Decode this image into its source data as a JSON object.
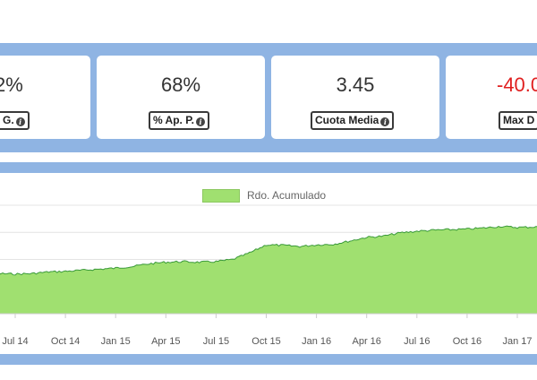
{
  "stats": [
    {
      "value": "2%",
      "label": "p. G.",
      "negative": false
    },
    {
      "value": "68%",
      "label": "% Ap. P.",
      "negative": false
    },
    {
      "value": "3.45",
      "label": "Cuota Media",
      "negative": false
    },
    {
      "value": "-40.0",
      "label": "Max D",
      "negative": true
    }
  ],
  "info_icon_glyph": "i",
  "colors": {
    "band": "#8fb4e3",
    "area_fill": "#a0e070",
    "area_line": "#3a9a3a",
    "negative_value": "#e02020"
  },
  "chart_data": {
    "type": "area",
    "series": [
      {
        "name": "Rdo. Acumulado"
      }
    ],
    "legend_position": "top",
    "grid": true,
    "xtick_labels": [
      "Jul 14",
      "Oct 14",
      "Jan 15",
      "Apr 15",
      "Jul 15",
      "Oct 15",
      "Jan 16",
      "Apr 16",
      "Jul 16",
      "Oct 16",
      "Jan 17"
    ],
    "x_domain": [
      "2014-04",
      "2017-03"
    ],
    "y_range": [
      0,
      100
    ],
    "points": [
      {
        "x": "2014-04",
        "y": 36.0
      },
      {
        "x": "2014-05",
        "y": 36.5
      },
      {
        "x": "2014-06",
        "y": 37.0
      },
      {
        "x": "2014-07",
        "y": 36.5
      },
      {
        "x": "2014-08",
        "y": 37.0
      },
      {
        "x": "2014-09",
        "y": 38.5
      },
      {
        "x": "2014-10",
        "y": 39.0
      },
      {
        "x": "2014-11",
        "y": 40.0
      },
      {
        "x": "2014-12",
        "y": 41.0
      },
      {
        "x": "2015-01",
        "y": 42.0
      },
      {
        "x": "2015-02",
        "y": 43.5
      },
      {
        "x": "2015-03",
        "y": 46.0
      },
      {
        "x": "2015-04",
        "y": 47.5
      },
      {
        "x": "2015-05",
        "y": 48.0
      },
      {
        "x": "2015-06",
        "y": 47.5
      },
      {
        "x": "2015-07",
        "y": 48.0
      },
      {
        "x": "2015-08",
        "y": 50.0
      },
      {
        "x": "2015-09",
        "y": 56.0
      },
      {
        "x": "2015-10",
        "y": 63.5
      },
      {
        "x": "2015-11",
        "y": 63.0
      },
      {
        "x": "2015-12",
        "y": 62.0
      },
      {
        "x": "2016-01",
        "y": 63.5
      },
      {
        "x": "2016-02",
        "y": 64.0
      },
      {
        "x": "2016-03",
        "y": 67.0
      },
      {
        "x": "2016-04",
        "y": 70.5
      },
      {
        "x": "2016-05",
        "y": 71.5
      },
      {
        "x": "2016-06",
        "y": 74.5
      },
      {
        "x": "2016-07",
        "y": 76.0
      },
      {
        "x": "2016-08",
        "y": 77.0
      },
      {
        "x": "2016-09",
        "y": 77.5
      },
      {
        "x": "2016-10",
        "y": 78.0
      },
      {
        "x": "2016-11",
        "y": 79.0
      },
      {
        "x": "2016-12",
        "y": 80.5
      },
      {
        "x": "2017-01",
        "y": 79.5
      },
      {
        "x": "2017-02",
        "y": 80.0
      },
      {
        "x": "2017-03",
        "y": 80.5
      }
    ]
  }
}
